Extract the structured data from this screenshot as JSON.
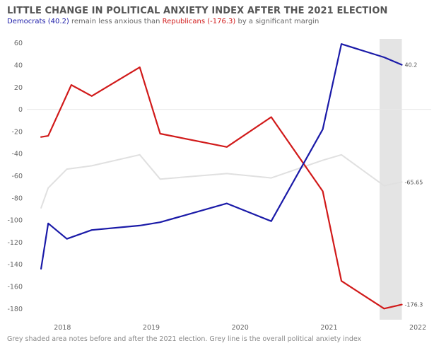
{
  "title": "LITTLE CHANGE IN POLITICAL ANXIETY INDEX AFTER THE 2021 ELECTION",
  "subtitle": {
    "dem_part": "Democrats (40.2)",
    "mid_part": " remain less anxious than ",
    "rep_part": "Republicans (-176.3)",
    "end_part": " by a significant margin"
  },
  "footnote": "Grey shaded area notes before and after the 2021 election. Grey line is the overall political anxiety index",
  "colors": {
    "democrats": "#1a1aa8",
    "republicans": "#d11a1a",
    "overall": "#e0e0e0",
    "shade": "#e4e4e4",
    "title": "#555555"
  },
  "chart_data": {
    "type": "line",
    "ylim": [
      -190,
      70
    ],
    "xlim": [
      2017.6,
      2022.15
    ],
    "y_ticks": [
      60,
      40,
      20,
      0,
      -20,
      -40,
      -60,
      -80,
      -100,
      -120,
      -140,
      -160,
      -180
    ],
    "x_ticks": [
      2018,
      2019,
      2020,
      2021,
      2022
    ],
    "grid": false,
    "zero_line": true,
    "shaded_region": [
      2021.57,
      2021.82
    ],
    "series": [
      {
        "name": "Democrats",
        "color": "#1a1aa8",
        "end_label": "40.2",
        "points": [
          [
            2017.76,
            -144
          ],
          [
            2017.84,
            -103
          ],
          [
            2018.05,
            -117
          ],
          [
            2018.33,
            -109
          ],
          [
            2018.87,
            -105
          ],
          [
            2019.1,
            -102
          ],
          [
            2019.85,
            -85
          ],
          [
            2020.35,
            -101
          ],
          [
            2020.93,
            -18
          ],
          [
            2021.14,
            59
          ],
          [
            2021.62,
            47
          ],
          [
            2021.82,
            40.2
          ]
        ]
      },
      {
        "name": "Republicans",
        "color": "#d11a1a",
        "end_label": "-176.3",
        "points": [
          [
            2017.76,
            -25
          ],
          [
            2017.84,
            -24
          ],
          [
            2018.1,
            22
          ],
          [
            2018.33,
            12
          ],
          [
            2018.87,
            38
          ],
          [
            2019.1,
            -22
          ],
          [
            2019.85,
            -34
          ],
          [
            2020.35,
            -7
          ],
          [
            2020.93,
            -74
          ],
          [
            2021.14,
            -155
          ],
          [
            2021.62,
            -180
          ],
          [
            2021.82,
            -176.3
          ]
        ]
      },
      {
        "name": "Overall",
        "color": "#e0e0e0",
        "end_label": "-65.65",
        "points": [
          [
            2017.76,
            -89
          ],
          [
            2017.84,
            -71
          ],
          [
            2018.05,
            -54
          ],
          [
            2018.33,
            -51
          ],
          [
            2018.87,
            -41
          ],
          [
            2019.1,
            -63
          ],
          [
            2019.85,
            -58
          ],
          [
            2020.35,
            -62
          ],
          [
            2020.93,
            -46
          ],
          [
            2021.14,
            -41
          ],
          [
            2021.62,
            -69
          ],
          [
            2021.82,
            -65.65
          ]
        ]
      }
    ]
  }
}
